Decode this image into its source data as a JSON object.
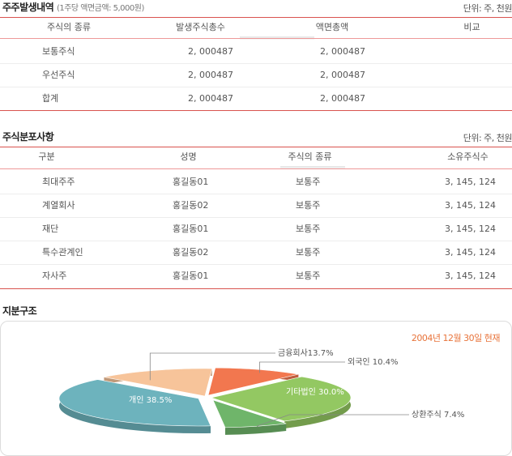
{
  "issue": {
    "title": "주주발생내역",
    "subtitle": "(1주당 액면금액: 5,000원)",
    "unit": "단위: 주, 천원",
    "columns": [
      "주식의 종류",
      "발생주식총수",
      "액면총액",
      "비교"
    ],
    "rows": [
      {
        "type": "보통주식",
        "total": "2, 000487",
        "amount": "2, 000487",
        "note": ""
      },
      {
        "type": "우선주식",
        "total": "2, 000487",
        "amount": "2, 000487",
        "note": ""
      },
      {
        "type": "합계",
        "total": "2, 000487",
        "amount": "2, 000487",
        "note": ""
      }
    ]
  },
  "distribution": {
    "title": "주식분포사항",
    "unit": "단위: 주, 천원",
    "columns": [
      "구분",
      "성명",
      "주식의 종류",
      "소유주식수"
    ],
    "rows": [
      {
        "category": "최대주주",
        "name": "홍길동01",
        "type": "보통주",
        "shares": "3, 145, 124"
      },
      {
        "category": "계열회사",
        "name": "홍길동02",
        "type": "보통주",
        "shares": "3, 145, 124"
      },
      {
        "category": "재단",
        "name": "홍길동01",
        "type": "보통주",
        "shares": "3, 145, 124"
      },
      {
        "category": "특수관계인",
        "name": "홍길동02",
        "type": "보통주",
        "shares": "3, 145, 124"
      },
      {
        "category": "자사주",
        "name": "홍길동01",
        "type": "보통주",
        "shares": "3, 145, 124"
      }
    ]
  },
  "structure": {
    "title": "지분구조",
    "date": "2004년 12월 30일 현재"
  },
  "chart_data": {
    "type": "pie",
    "title": "",
    "slices": [
      {
        "label": "개인",
        "value": 38.5,
        "text": "개인 38.5%",
        "color": "#6db3bd"
      },
      {
        "label": "금융회사",
        "value": 13.7,
        "text": "금융회사13.7%",
        "color": "#f7c49a"
      },
      {
        "label": "외국인",
        "value": 10.4,
        "text": "외국인 10.4%",
        "color": "#f2774f"
      },
      {
        "label": "기타법인",
        "value": 30.0,
        "text": "기타법인 30.0%",
        "color": "#93c862"
      },
      {
        "label": "상환주식",
        "value": 7.4,
        "text": "상환주식 7.4%",
        "color": "#6fb56a"
      }
    ]
  }
}
